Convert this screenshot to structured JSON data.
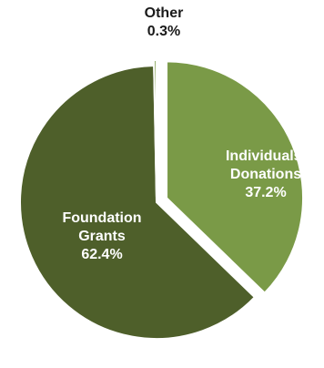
{
  "chart_data": {
    "type": "pie",
    "title": "",
    "slices": [
      {
        "label_lines": [
          "Individuals/",
          "Donations"
        ],
        "value_text": "37.2%",
        "value": 37.2,
        "color": "#7a9a47",
        "text_color": "#ffffff",
        "label_position": "inside",
        "exploded": true
      },
      {
        "label_lines": [
          "Foundation",
          "Grants"
        ],
        "value_text": "62.4%",
        "value": 62.4,
        "color": "#4e5f2a",
        "text_color": "#ffffff",
        "label_position": "inside",
        "exploded": false
      },
      {
        "label_lines": [
          "Other"
        ],
        "value_text": "0.3%",
        "value": 0.3,
        "color": "#7a9a47",
        "text_color": "#1a1a1a",
        "label_position": "outside",
        "exploded": true
      }
    ]
  }
}
